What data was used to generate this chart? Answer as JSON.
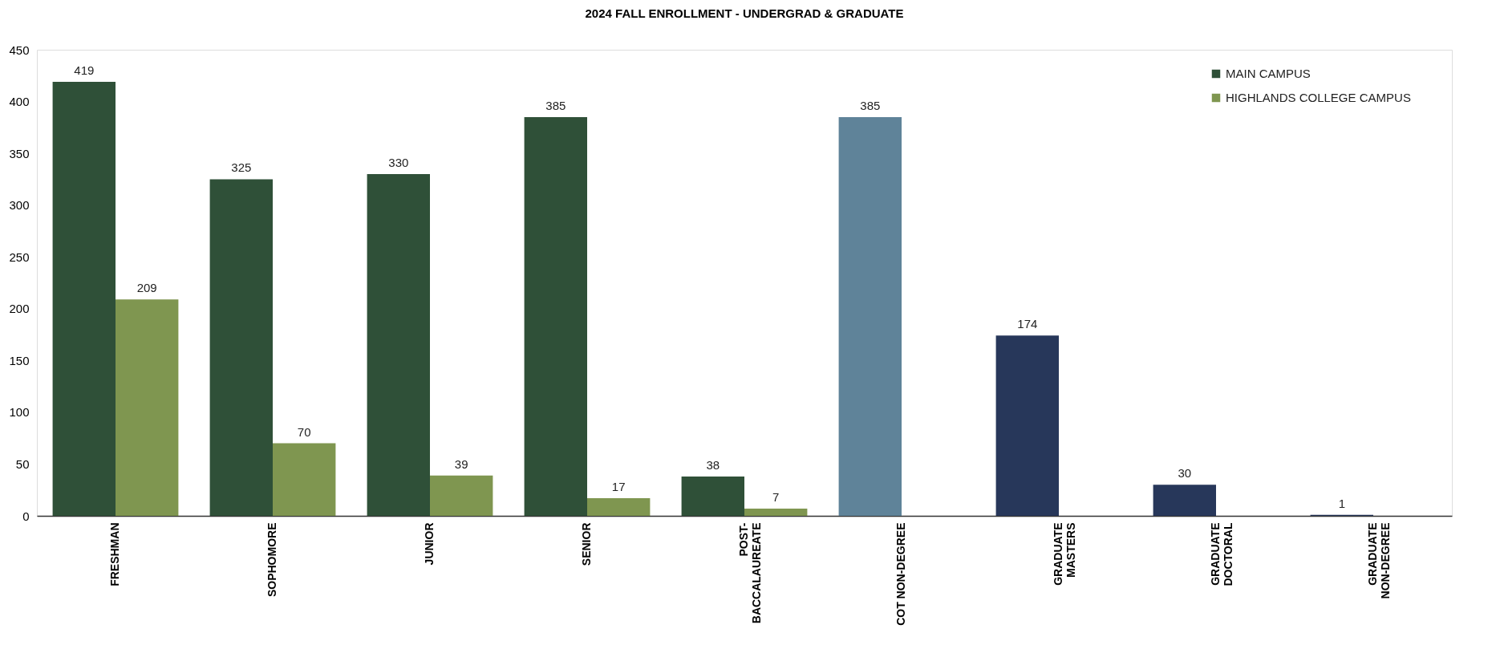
{
  "chart_data": {
    "type": "bar",
    "title": "2024 FALL ENROLLMENT - UNDERGRAD & GRADUATE",
    "categories": [
      "FRESHMAN",
      "SOPHOMORE",
      "JUNIOR",
      "SENIOR",
      "POST-\nBACCALAUREATE",
      "COT NON-DEGREE",
      "GRADUATE\nMASTERS",
      "GRADUATE\nDOCTORAL",
      "GRADUATE\nNON-DEGREE"
    ],
    "series": [
      {
        "name": "MAIN CAMPUS",
        "color": "#2f5038",
        "colors": [
          "#2f5038",
          "#2f5038",
          "#2f5038",
          "#2f5038",
          "#2f5038",
          "#5f8399",
          "#27375a",
          "#27375a",
          "#27375a"
        ],
        "values": [
          419,
          325,
          330,
          385,
          38,
          385,
          174,
          30,
          1
        ]
      },
      {
        "name": "HIGHLANDS COLLEGE CAMPUS",
        "color": "#7f9650",
        "values": [
          209,
          70,
          39,
          17,
          7,
          null,
          null,
          null,
          null
        ]
      }
    ],
    "ylim": [
      0,
      450
    ],
    "yticks": [
      0,
      50,
      100,
      150,
      200,
      250,
      300,
      350,
      400,
      450
    ],
    "grid": false,
    "legend": "top right",
    "data_labels": true
  }
}
